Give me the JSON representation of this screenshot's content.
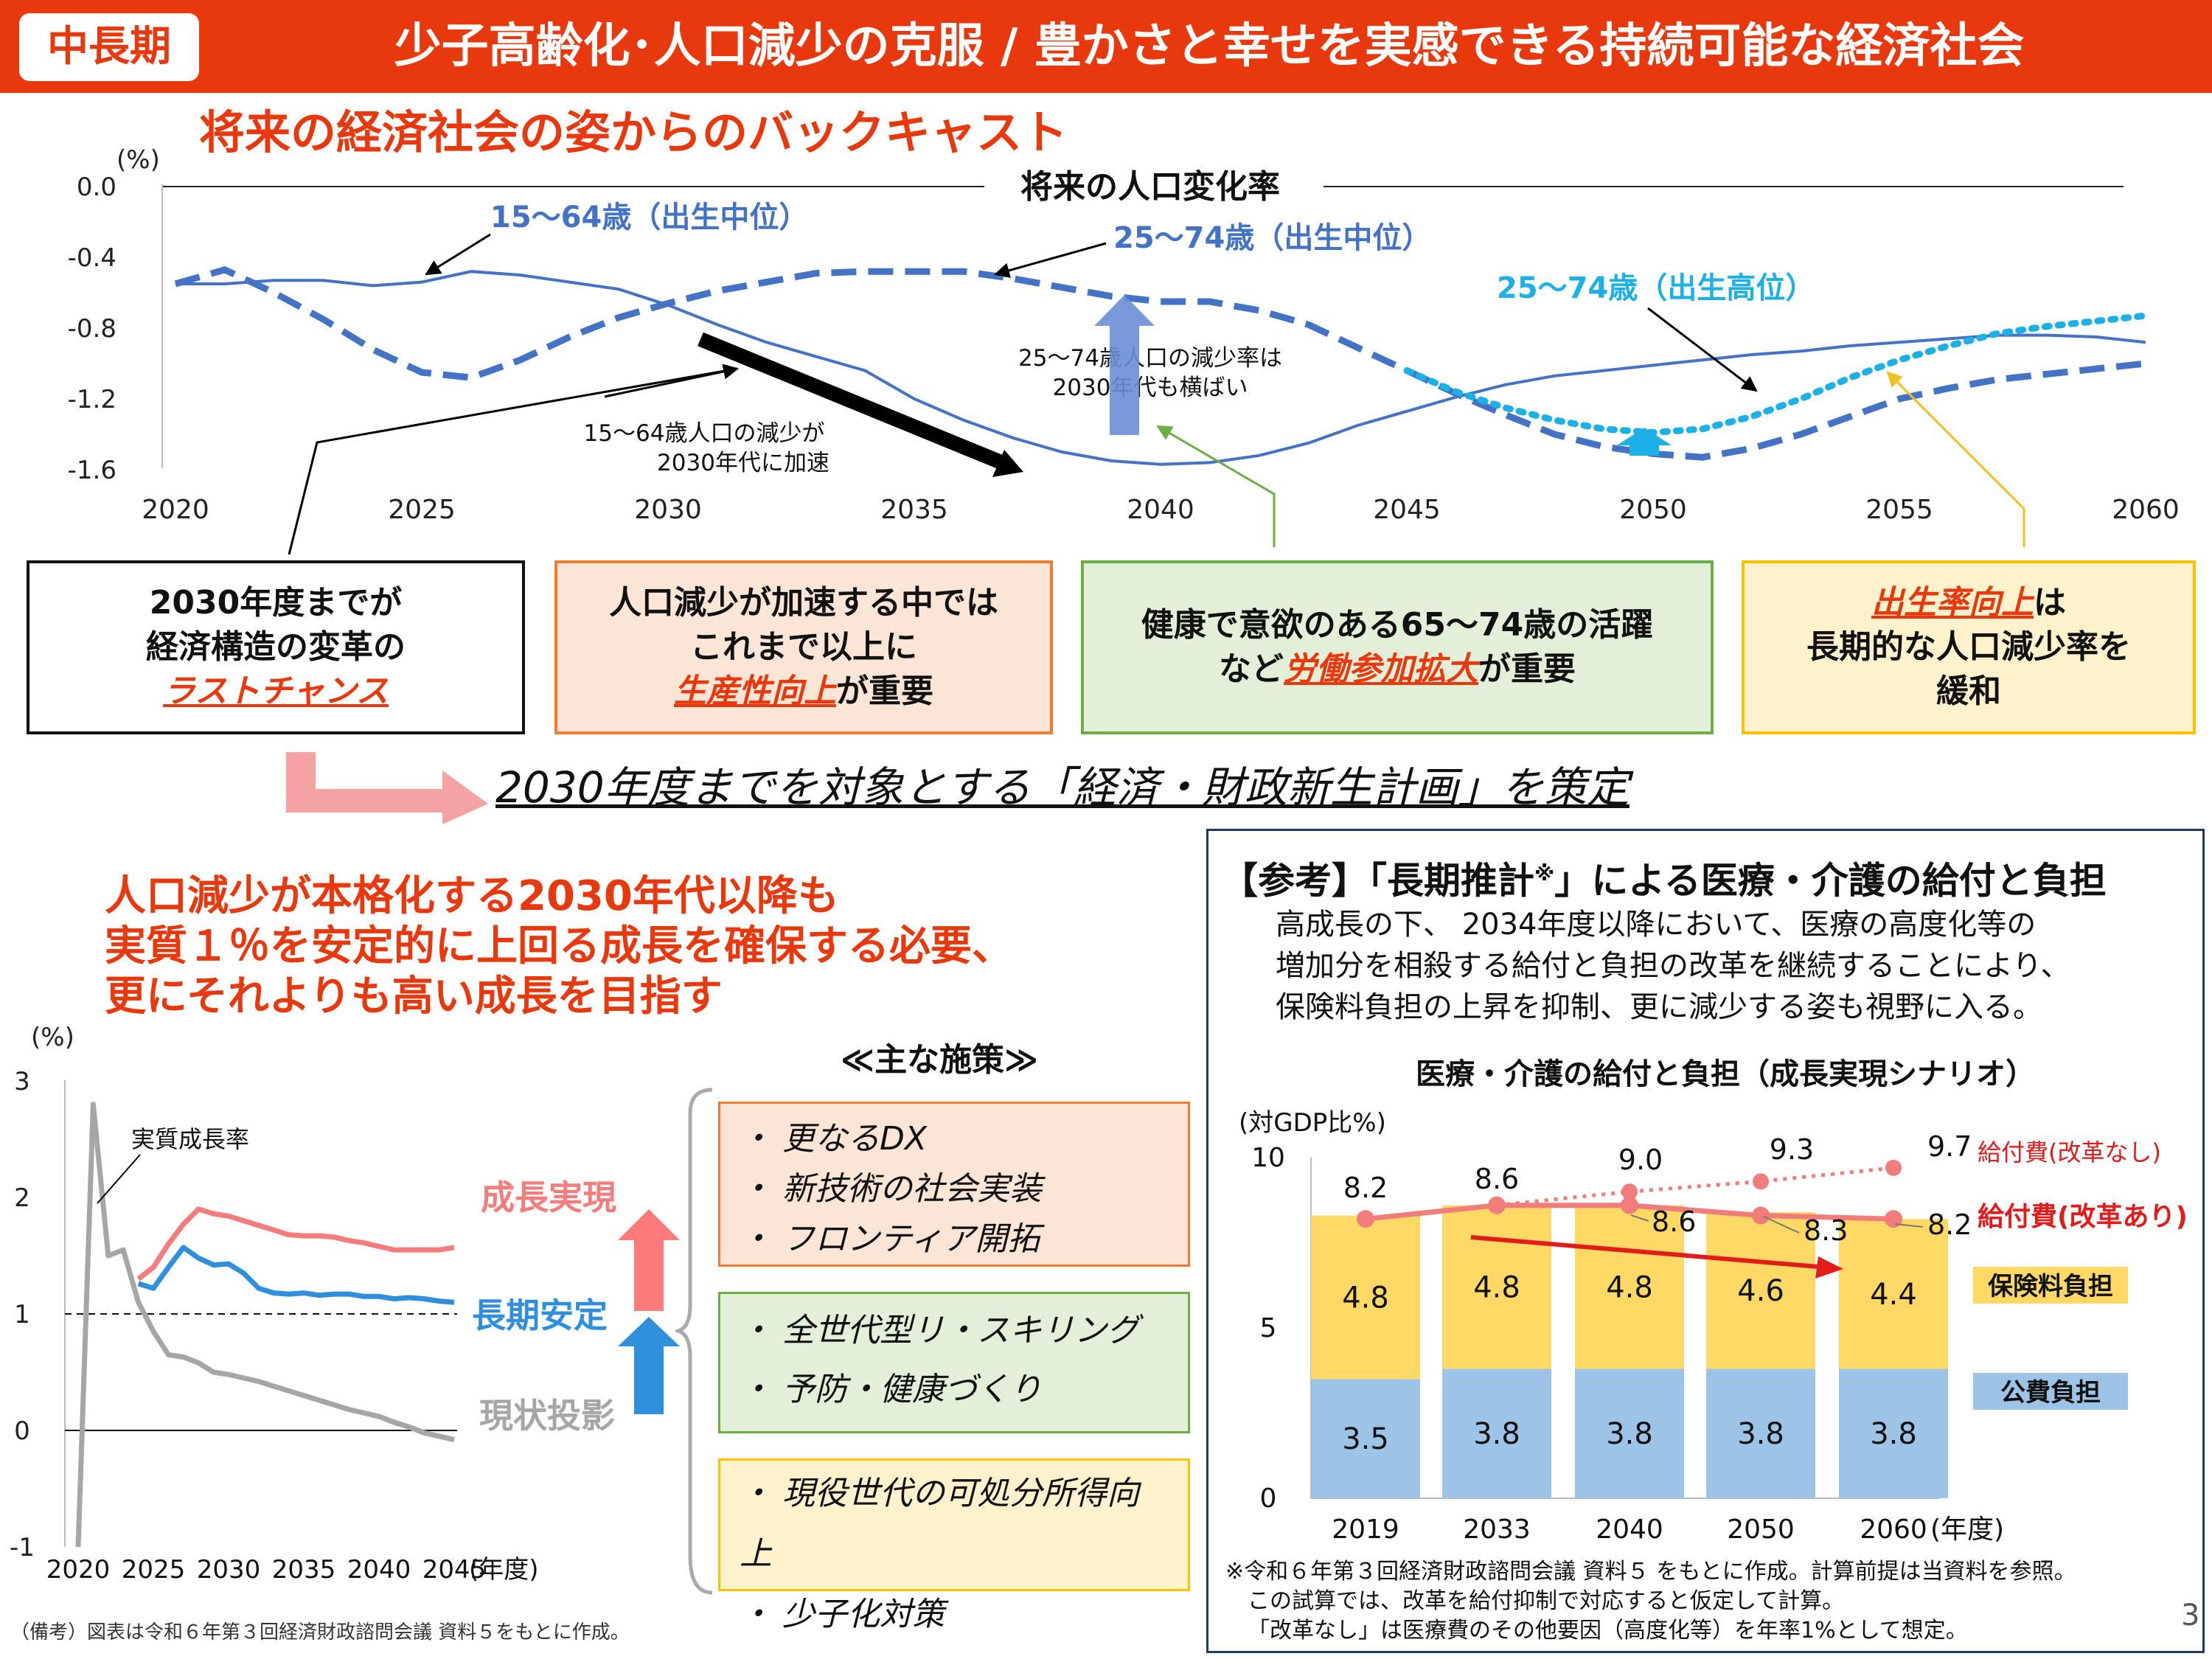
{
  "header": {
    "tag": "中長期",
    "title": "少子高齢化･人口減少の克服 / 豊かさと幸せを実感できる持続可能な経済社会"
  },
  "section1_title": "将来の経済社会の姿からのバックキャスト",
  "pop_chart": {
    "title": "将来の人口変化率",
    "unit": "(%)",
    "y_ticks": [
      "0.0",
      "-0.4",
      "-0.8",
      "-1.2",
      "-1.6"
    ],
    "x_ticks": [
      "2020",
      "2025",
      "2030",
      "2035",
      "2040",
      "2045",
      "2050",
      "2055",
      "2060"
    ],
    "label_1564": "15～64歳（出生中位）",
    "label_2574_mid": "25～74歳（出生中位）",
    "label_2574_high": "25～74歳（出生高位）",
    "annot_2574": "25～74歳人口の減少率は\n2030年代も横ばい",
    "annot_1564": "15～64歳人口の減少が\n2030年代に加速",
    "colors": {
      "mid": "#4472c4",
      "high": "#1cb0e6"
    }
  },
  "chart_data": [
    {
      "type": "line",
      "title": "将来の人口変化率",
      "ylabel": "(%)",
      "xlim": [
        2020,
        2060
      ],
      "ylim": [
        -1.6,
        0.0
      ],
      "x": [
        2020,
        2021,
        2022,
        2023,
        2024,
        2025,
        2026,
        2027,
        2028,
        2029,
        2030,
        2031,
        2032,
        2033,
        2034,
        2035,
        2036,
        2037,
        2038,
        2039,
        2040,
        2041,
        2042,
        2043,
        2044,
        2045,
        2046,
        2047,
        2048,
        2049,
        2050,
        2051,
        2052,
        2053,
        2054,
        2055,
        2056,
        2057,
        2058,
        2059,
        2060
      ],
      "series": [
        {
          "name": "15～64歳（出生中位）",
          "values": [
            -0.55,
            -0.55,
            -0.53,
            -0.53,
            -0.56,
            -0.54,
            -0.48,
            -0.5,
            -0.54,
            -0.58,
            -0.67,
            -0.78,
            -0.88,
            -0.96,
            -1.04,
            -1.2,
            -1.32,
            -1.42,
            -1.5,
            -1.55,
            -1.57,
            -1.56,
            -1.52,
            -1.45,
            -1.35,
            -1.27,
            -1.19,
            -1.12,
            -1.07,
            -1.04,
            -1.01,
            -0.98,
            -0.95,
            -0.93,
            -0.9,
            -0.88,
            -0.86,
            -0.84,
            -0.84,
            -0.85,
            -0.88
          ]
        },
        {
          "name": "25～74歳（出生中位）",
          "values": [
            -0.55,
            -0.47,
            -0.6,
            -0.75,
            -0.92,
            -1.05,
            -1.08,
            -0.98,
            -0.85,
            -0.74,
            -0.66,
            -0.59,
            -0.54,
            -0.49,
            -0.48,
            -0.48,
            -0.48,
            -0.52,
            -0.57,
            -0.62,
            -0.65,
            -0.65,
            -0.7,
            -0.78,
            -0.91,
            -1.04,
            -1.17,
            -1.29,
            -1.4,
            -1.47,
            -1.51,
            -1.53,
            -1.48,
            -1.4,
            -1.3,
            -1.2,
            -1.14,
            -1.09,
            -1.06,
            -1.03,
            -1.0
          ]
        },
        {
          "name": "25～74歳（出生高位）",
          "values": [
            null,
            null,
            null,
            null,
            null,
            null,
            null,
            null,
            null,
            null,
            null,
            null,
            null,
            null,
            null,
            null,
            null,
            null,
            null,
            null,
            null,
            null,
            null,
            null,
            null,
            -1.04,
            -1.16,
            -1.25,
            -1.32,
            -1.37,
            -1.39,
            -1.37,
            -1.3,
            -1.2,
            -1.08,
            -0.98,
            -0.9,
            -0.83,
            -0.79,
            -0.76,
            -0.73
          ]
        }
      ]
    },
    {
      "type": "line",
      "ylabel": "(%)",
      "xlabel": "（年度）",
      "xlim": [
        2020,
        2045
      ],
      "ylim": [
        -1,
        3
      ],
      "series": [
        {
          "name": "実質成長率",
          "x": [
            2020,
            2021,
            2022,
            2023,
            2024,
            2025,
            2026,
            2027,
            2028,
            2029,
            2030,
            2031,
            2032,
            2033,
            2034,
            2035,
            2036,
            2037,
            2038,
            2039,
            2040,
            2041,
            2042,
            2043,
            2044,
            2045
          ],
          "values": [
            -1.0,
            2.8,
            1.5,
            1.55,
            1.1,
            0.85,
            0.65,
            0.63,
            0.58,
            0.5,
            0.48,
            0.45,
            0.42,
            0.38,
            0.34,
            0.3,
            0.26,
            0.22,
            0.18,
            0.15,
            0.12,
            0.07,
            0.03,
            -0.02,
            -0.05,
            -0.08
          ]
        },
        {
          "name": "成長実現",
          "x": [
            2024,
            2025,
            2026,
            2027,
            2028,
            2029,
            2030,
            2031,
            2032,
            2033,
            2034,
            2035,
            2036,
            2037,
            2038,
            2039,
            2040,
            2041,
            2042,
            2043,
            2044,
            2045
          ],
          "values": [
            1.3,
            1.4,
            1.6,
            1.77,
            1.9,
            1.86,
            1.84,
            1.8,
            1.76,
            1.72,
            1.68,
            1.67,
            1.67,
            1.66,
            1.63,
            1.61,
            1.58,
            1.55,
            1.55,
            1.55,
            1.55,
            1.57
          ]
        },
        {
          "name": "長期安定",
          "x": [
            2024,
            2025,
            2026,
            2027,
            2028,
            2029,
            2030,
            2031,
            2032,
            2033,
            2034,
            2035,
            2036,
            2037,
            2038,
            2039,
            2040,
            2041,
            2042,
            2043,
            2044,
            2045
          ],
          "values": [
            1.26,
            1.22,
            1.4,
            1.57,
            1.48,
            1.42,
            1.43,
            1.35,
            1.22,
            1.18,
            1.17,
            1.18,
            1.16,
            1.17,
            1.17,
            1.15,
            1.15,
            1.13,
            1.14,
            1.13,
            1.11,
            1.1
          ]
        },
        {
          "name": "現状投影",
          "x": [
            2040,
            2041,
            2042,
            2043,
            2044,
            2045
          ],
          "values": [
            0.12,
            0.07,
            0.03,
            -0.02,
            -0.05,
            -0.08
          ]
        }
      ]
    },
    {
      "type": "bar",
      "title": "医療・介護の給付と負担（成長実現シナリオ）",
      "ylabel": "(対GDP比%)",
      "xlabel": "(年度)",
      "categories": [
        "2019",
        "2033",
        "2040",
        "2050",
        "2060"
      ],
      "ylim": [
        0,
        10
      ],
      "series": [
        {
          "name": "公費負担",
          "values": [
            3.5,
            3.8,
            3.8,
            3.8,
            3.8
          ]
        },
        {
          "name": "保険料負担",
          "values": [
            4.8,
            4.8,
            4.8,
            4.6,
            4.4
          ]
        },
        {
          "name": "給付費(改革あり)",
          "values": [
            8.2,
            8.6,
            8.6,
            8.3,
            8.2
          ]
        },
        {
          "name": "給付費(改革なし)",
          "values": [
            null,
            8.6,
            9.0,
            9.3,
            9.7
          ]
        }
      ]
    }
  ],
  "boxes": {
    "b1_l1": "2030年度までが",
    "b1_l2": "経済構造の変革の",
    "b1_u": "ラストチャンス",
    "b2_l1": "人口減少が加速する中では",
    "b2_l2": "これまで以上に",
    "b2_u": "生産性向上",
    "b2_t": "が重要",
    "b3_l1": "健康で意欲のある65～74歳の活躍",
    "b3_p": "など",
    "b3_u": "労働参加拡大",
    "b3_t": "が重要",
    "b4_u": "出生率向上",
    "b4_t": "は",
    "b4_l2": "長期的な人口減少率を",
    "b4_l3": "緩和"
  },
  "plan": "2030年度までを対象とする「経済・財政新生計画」を策定",
  "growth": {
    "line1": "人口減少が本格化する2030年代以降も",
    "line2": "実質１％を安定的に上回る成長を確保する必要、",
    "line3": "更にそれよりも高い成長を目指す",
    "unit": "(%)",
    "y_ticks": [
      "3",
      "2",
      "1",
      "0",
      "-1"
    ],
    "x_ticks": [
      "2020",
      "2025",
      "2030",
      "2035",
      "2040",
      "2045"
    ],
    "x_unit": "(年度)",
    "label_real": "実質成長率",
    "label_high": "成長実現",
    "label_stable": "長期安定",
    "label_base": "現状投影",
    "colors": {
      "high": "#f47c7c",
      "stable": "#2f8fdc",
      "base": "#a6a6a6"
    }
  },
  "policies": {
    "title": "≪主な施策≫",
    "group1": [
      "・ 更なるDX",
      "・ 新技術の社会実装",
      "・ フロンティア開拓"
    ],
    "group2": [
      "・ 全世代型リ・スキリング",
      "・ 予防・健康づくり"
    ],
    "group3": [
      "・ 現役世代の可処分所得向上",
      "・ 少子化対策"
    ]
  },
  "reference": {
    "title": "【参考】「長期推計",
    "title_sup": "※",
    "title_end": "」による医療・介護の給付と負担",
    "desc1": "高成長の下、 2034年度以降において、医療の高度化等の",
    "desc2": "増加分を相殺する給付と負担の改革を継続することにより、",
    "desc3": "保険料負担の上昇を抑制、更に減少する姿も視野に入る。",
    "chart_title": "医療・介護の給付と負担（成長実現シナリオ）",
    "unit": "(対GDP比%)",
    "y_ticks": [
      "10",
      "5",
      "0"
    ],
    "years": [
      "2019",
      "2033",
      "2040",
      "2050",
      "2060"
    ],
    "year_unit": "(年度)",
    "public": [
      "3.5",
      "3.8",
      "3.8",
      "3.8",
      "3.8"
    ],
    "insurance": [
      "4.8",
      "4.8",
      "4.8",
      "4.6",
      "4.4"
    ],
    "benefit_reform": [
      "8.2",
      "8.6",
      "8.6",
      "8.3",
      "8.2"
    ],
    "benefit_noreform": [
      "9.0",
      "9.3",
      "9.7"
    ],
    "legend_noreform": "給付費(改革なし)",
    "legend_reform": "給付費(改革あり)",
    "legend_insurance": "保険料負担",
    "legend_public": "公費負担",
    "note1": "※令和６年第３回経済財政諮問会議 資料５ をもとに作成。計算前提は当資料を参照。",
    "note2": "この試算では、改革を給付抑制で対応すると仮定して計算。",
    "note3": "「改革なし」は医療費のその他要因（高度化等）を年率1%として想定。",
    "colors": {
      "public": "#9dc3e6",
      "insurance": "#ffd966",
      "reform": "#f07c7c",
      "arrow": "#e21b1b"
    }
  },
  "footnote": "（備考）図表は令和６年第３回経済財政諮問会議 資料５をもとに作成。",
  "page_number": "3"
}
